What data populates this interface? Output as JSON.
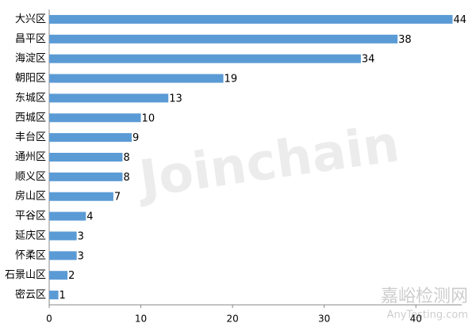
{
  "chart_data": {
    "type": "barh",
    "categories": [
      "大兴区",
      "昌平区",
      "海淀区",
      "朝阳区",
      "东城区",
      "西城区",
      "丰台区",
      "通州区",
      "顺义区",
      "房山区",
      "平谷区",
      "延庆区",
      "怀柔区",
      "石景山区",
      "密云区"
    ],
    "values": [
      44,
      38,
      34,
      19,
      13,
      10,
      9,
      8,
      8,
      7,
      4,
      3,
      3,
      2,
      1
    ],
    "color": "#5b9bd5",
    "xlim": [
      0,
      45
    ],
    "xticks": [
      0,
      10,
      20,
      30,
      40
    ],
    "grid": false,
    "watermarks": [
      "Joinchain",
      "嘉峪检测网",
      "AnyTesting.com"
    ]
  }
}
